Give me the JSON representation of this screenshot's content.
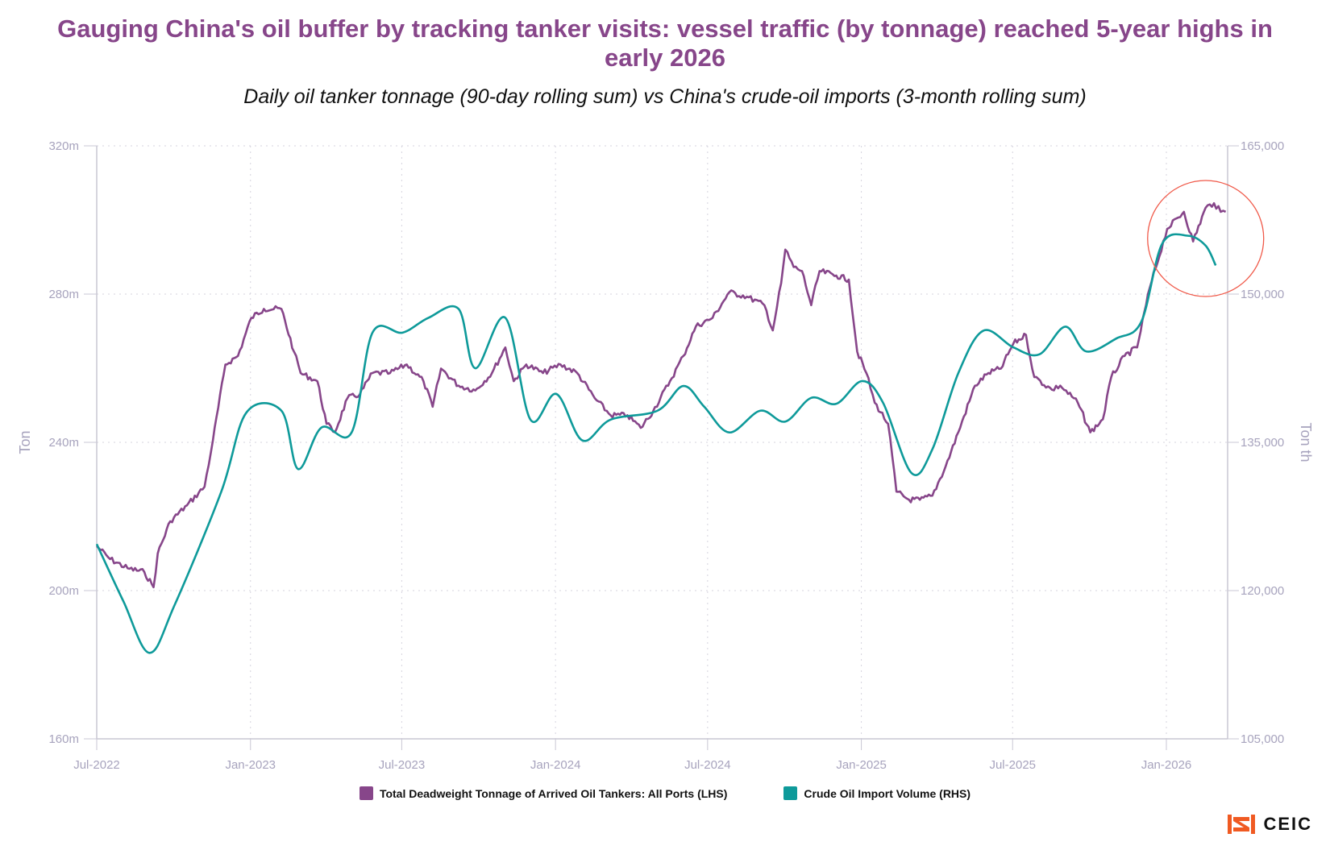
{
  "chart_data": {
    "type": "line",
    "title": "Gauging China's oil buffer by tracking tanker visits: vessel traffic (by tonnage) reached 5-year highs in early 2026",
    "subtitle": "Daily oil tanker tonnage (90-day rolling sum) vs China's crude-oil imports (3-month rolling sum)",
    "x_ticks": [
      "Jul-2022",
      "Jan-2023",
      "Jul-2023",
      "Jan-2024",
      "Jul-2024",
      "Jan-2025",
      "Jul-2025",
      "Jan-2026"
    ],
    "x_tick_dates": [
      "2022-07-01",
      "2023-01-01",
      "2023-07-01",
      "2024-01-01",
      "2024-07-01",
      "2025-01-01",
      "2025-07-01",
      "2026-01-01"
    ],
    "xlim": [
      "2022-07-01",
      "2026-03-20"
    ],
    "y_left": {
      "label": "Ton",
      "ylim": [
        160,
        320
      ],
      "ticks": [
        "160m",
        "200m",
        "240m",
        "280m",
        "320m"
      ],
      "tick_values": [
        160,
        200,
        240,
        280,
        320
      ],
      "unit": "m"
    },
    "y_right": {
      "label": "Ton th",
      "ylim": [
        105000,
        165000
      ],
      "ticks": [
        "105,000",
        "120,000",
        "135,000",
        "150,000",
        "165,000"
      ],
      "tick_values": [
        105000,
        120000,
        135000,
        150000,
        165000
      ]
    },
    "grid": true,
    "legend_position": "bottom",
    "series": [
      {
        "name": "Total Deadweight Tonnage of Arrived Oil Tankers: All Ports (LHS)",
        "axis": "left",
        "color": "#87468a",
        "x": [
          "2022-07-01",
          "2022-07-17",
          "2022-08-07",
          "2022-08-27",
          "2022-09-07",
          "2022-09-12",
          "2022-09-27",
          "2022-10-17",
          "2022-11-07",
          "2022-11-17",
          "2022-12-02",
          "2022-12-17",
          "2023-01-02",
          "2023-01-17",
          "2023-02-07",
          "2023-02-22",
          "2023-03-02",
          "2023-03-22",
          "2023-04-02",
          "2023-04-12",
          "2023-04-27",
          "2023-05-12",
          "2023-05-27",
          "2023-06-17",
          "2023-07-07",
          "2023-07-27",
          "2023-08-07",
          "2023-08-17",
          "2023-09-07",
          "2023-09-27",
          "2023-10-17",
          "2023-11-02",
          "2023-11-12",
          "2023-11-27",
          "2023-12-17",
          "2024-01-07",
          "2024-01-27",
          "2024-02-17",
          "2024-03-07",
          "2024-03-27",
          "2024-04-12",
          "2024-04-27",
          "2024-05-17",
          "2024-06-02",
          "2024-06-17",
          "2024-07-07",
          "2024-07-27",
          "2024-08-17",
          "2024-09-07",
          "2024-09-17",
          "2024-09-27",
          "2024-10-02",
          "2024-10-12",
          "2024-10-22",
          "2024-11-02",
          "2024-11-12",
          "2024-12-02",
          "2024-12-17",
          "2024-12-27",
          "2025-01-07",
          "2025-01-17",
          "2025-02-02",
          "2025-02-12",
          "2025-02-27",
          "2025-03-12",
          "2025-03-27",
          "2025-04-12",
          "2025-04-27",
          "2025-05-17",
          "2025-06-02",
          "2025-06-17",
          "2025-07-02",
          "2025-07-17",
          "2025-07-27",
          "2025-08-17",
          "2025-08-27",
          "2025-09-17",
          "2025-10-02",
          "2025-10-17",
          "2025-10-27",
          "2025-11-12",
          "2025-11-27",
          "2025-12-12",
          "2026-01-02",
          "2026-01-22",
          "2026-02-02",
          "2026-02-17",
          "2026-02-27",
          "2026-03-07",
          "2026-03-13"
        ],
        "values": [
          212,
          208.5,
          206,
          205,
          200.9,
          210,
          218.7,
          223,
          228,
          240.5,
          261,
          263.3,
          273.6,
          276,
          276,
          264.5,
          258.7,
          256.5,
          245,
          242.7,
          251.9,
          253,
          258.7,
          258.7,
          261,
          256.5,
          249.6,
          259.9,
          255.3,
          254,
          258.7,
          265.6,
          256.5,
          261,
          258.7,
          261,
          258.7,
          251.9,
          247.3,
          247.3,
          243.9,
          248.5,
          256.5,
          263.3,
          271.3,
          273.6,
          280.5,
          279.3,
          277,
          270.2,
          282.9,
          292,
          287.3,
          286.2,
          277,
          286.2,
          285,
          283.9,
          264.5,
          258.7,
          250.7,
          245,
          226.7,
          224.5,
          224.5,
          225.6,
          233.6,
          242.7,
          255.3,
          258.7,
          259.9,
          266.7,
          269,
          257.6,
          254.2,
          255.3,
          250.7,
          242.7,
          246.2,
          257.6,
          263.3,
          265.6,
          281.6,
          297.6,
          302.2,
          294.2,
          303.3,
          304.5,
          302.2,
          302.2
        ]
      },
      {
        "name": "Crude Oil Import Volume (RHS)",
        "axis": "right",
        "color": "#0e9a9a",
        "x": [
          "2022-07-01",
          "2022-08-02",
          "2022-09-02",
          "2022-10-02",
          "2022-11-27",
          "2022-12-27",
          "2023-02-07",
          "2023-02-27",
          "2023-03-27",
          "2023-05-02",
          "2023-05-27",
          "2023-07-02",
          "2023-08-02",
          "2023-09-07",
          "2023-09-27",
          "2023-11-02",
          "2023-12-02",
          "2024-01-02",
          "2024-02-02",
          "2024-03-07",
          "2024-05-02",
          "2024-06-02",
          "2024-06-27",
          "2024-07-27",
          "2024-09-02",
          "2024-10-02",
          "2024-11-02",
          "2024-12-02",
          "2025-01-02",
          "2025-01-27",
          "2025-03-02",
          "2025-03-27",
          "2025-04-27",
          "2025-05-27",
          "2025-07-02",
          "2025-08-02",
          "2025-09-02",
          "2025-09-27",
          "2025-11-02",
          "2025-12-02",
          "2025-12-27",
          "2026-01-27",
          "2026-02-17",
          "2026-03-01"
        ],
        "values": [
          124700,
          118900,
          113700,
          118500,
          130000,
          138000,
          138200,
          132300,
          136500,
          136000,
          146100,
          146100,
          147600,
          148500,
          142500,
          147600,
          137300,
          139900,
          135200,
          137300,
          138200,
          140700,
          138600,
          136000,
          138200,
          137100,
          139500,
          138900,
          141200,
          139000,
          131900,
          134300,
          142000,
          146300,
          144600,
          143900,
          146700,
          144200,
          145500,
          147200,
          155100,
          155900,
          154900,
          152900
        ]
      }
    ],
    "annotation": {
      "shape": "circle",
      "color": "#f05a4a",
      "center_date": "2026-02-17",
      "center_value": 295
    }
  },
  "logo": {
    "text": "CEIC",
    "color": "#f05a22"
  }
}
